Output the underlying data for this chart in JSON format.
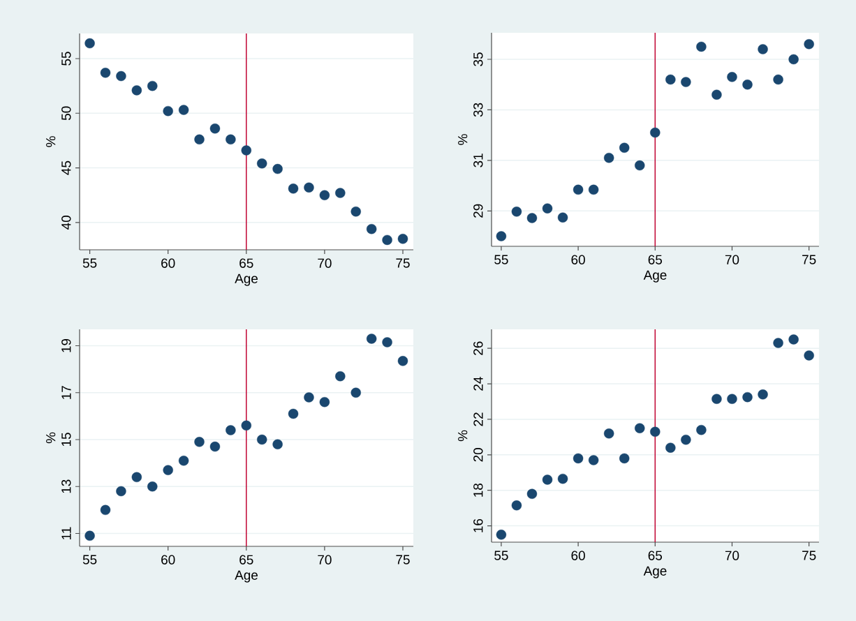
{
  "chart_data": [
    {
      "type": "scatter",
      "xlabel": "Age",
      "ylabel": "%",
      "x": [
        55,
        56,
        57,
        58,
        59,
        60,
        61,
        62,
        63,
        64,
        65,
        66,
        67,
        68,
        69,
        70,
        71,
        72,
        73,
        74,
        75
      ],
      "series": [
        {
          "color": "#1a476f",
          "values": [
            56.4,
            53.7,
            53.4,
            52.1,
            52.5,
            50.2,
            50.3,
            47.6,
            48.6,
            47.6,
            46.6,
            45.4,
            44.9,
            43.1,
            43.2,
            42.5,
            42.7,
            41.0,
            39.4,
            38.4,
            38.5
          ]
        }
      ],
      "xlim": [
        54.35,
        75.67
      ],
      "ylim": [
        37.5,
        57.3
      ],
      "xticks": [
        55,
        60,
        65,
        70,
        75
      ],
      "yticks": [
        40,
        45,
        50,
        55
      ],
      "grid": "y",
      "marker": "circle",
      "ref_lines": [
        {
          "axis": "x",
          "value": 65,
          "color": "#c10534"
        }
      ]
    },
    {
      "type": "scatter",
      "xlabel": "Age",
      "ylabel": "%",
      "x": [
        55,
        56,
        57,
        58,
        59,
        60,
        61,
        62,
        63,
        64,
        65,
        66,
        67,
        68,
        69,
        70,
        71,
        72,
        73,
        74,
        75
      ],
      "series": [
        {
          "color": "#1a476f",
          "values": [
            28.0,
            28.97,
            28.72,
            29.1,
            28.74,
            29.84,
            29.84,
            31.1,
            31.5,
            30.8,
            32.1,
            34.2,
            34.1,
            35.5,
            33.6,
            34.3,
            34.0,
            35.4,
            34.2,
            35.0,
            35.6
          ]
        }
      ],
      "xlim": [
        54.37,
        75.65
      ],
      "ylim": [
        27.6,
        36.05
      ],
      "xticks": [
        55,
        60,
        65,
        70,
        75
      ],
      "yticks": [
        29,
        31,
        33,
        35
      ],
      "grid": "y",
      "marker": "circle",
      "ref_lines": [
        {
          "axis": "x",
          "value": 65,
          "color": "#c10534"
        }
      ]
    },
    {
      "type": "scatter",
      "xlabel": "Age",
      "ylabel": "%",
      "x": [
        55,
        56,
        57,
        58,
        59,
        60,
        61,
        62,
        63,
        64,
        65,
        66,
        67,
        68,
        69,
        70,
        71,
        72,
        73,
        74,
        75
      ],
      "series": [
        {
          "color": "#1a476f",
          "values": [
            10.9,
            12.0,
            12.8,
            13.4,
            13.0,
            13.7,
            14.1,
            14.9,
            14.7,
            15.4,
            15.6,
            15.0,
            14.8,
            16.1,
            16.8,
            16.6,
            17.7,
            17.0,
            19.3,
            19.15,
            18.35
          ]
        }
      ],
      "xlim": [
        54.35,
        75.67
      ],
      "ylim": [
        10.45,
        19.7
      ],
      "xticks": [
        55,
        60,
        65,
        70,
        75
      ],
      "yticks": [
        11,
        13,
        15,
        17,
        19
      ],
      "grid": "y",
      "marker": "circle",
      "ref_lines": [
        {
          "axis": "x",
          "value": 65,
          "color": "#c10534"
        }
      ]
    },
    {
      "type": "scatter",
      "xlabel": "Age",
      "ylabel": "%",
      "x": [
        55,
        56,
        57,
        58,
        59,
        60,
        61,
        62,
        63,
        64,
        65,
        66,
        67,
        68,
        69,
        70,
        71,
        72,
        73,
        74,
        75
      ],
      "series": [
        {
          "color": "#1a476f",
          "values": [
            15.5,
            17.15,
            17.8,
            18.6,
            18.65,
            19.8,
            19.7,
            21.2,
            19.8,
            21.5,
            21.3,
            20.4,
            20.85,
            21.4,
            23.15,
            23.15,
            23.25,
            23.4,
            26.3,
            26.5,
            25.6
          ]
        }
      ],
      "xlim": [
        54.37,
        75.65
      ],
      "ylim": [
        15.08,
        27.07
      ],
      "xticks": [
        55,
        60,
        65,
        70,
        75
      ],
      "yticks": [
        16,
        18,
        20,
        22,
        24,
        26
      ],
      "grid": "y",
      "marker": "circle",
      "ref_lines": [
        {
          "axis": "x",
          "value": 65,
          "color": "#c10534"
        }
      ]
    }
  ]
}
